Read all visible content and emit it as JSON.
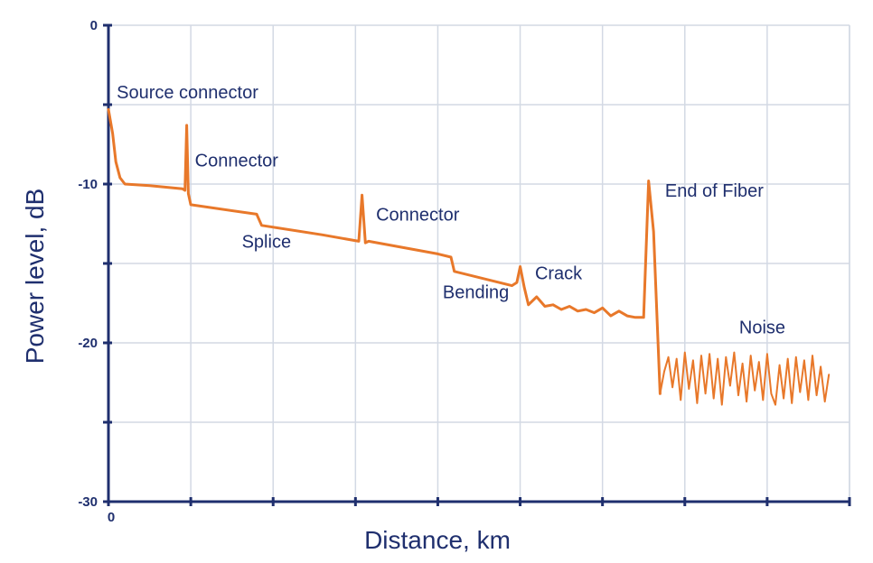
{
  "chart_data": {
    "type": "line",
    "xlabel": "Distance, km",
    "ylabel": "Power level, dB",
    "x_tick_labels": [
      "0"
    ],
    "y_ticks": [
      0,
      -10,
      -20,
      -30
    ],
    "y_tick_labels": [
      "0",
      "-10",
      "-20",
      "-30"
    ],
    "ylim": [
      -30,
      0
    ],
    "grid": true,
    "colors": {
      "trace": "#e8782a",
      "axis": "#1f2f6e",
      "grid": "#d3d9e4"
    },
    "series": [
      {
        "values": [
          [
            0.0,
            -5.3
          ],
          [
            0.05,
            -6.8
          ],
          [
            0.09,
            -8.6
          ],
          [
            0.14,
            -9.6
          ],
          [
            0.2,
            -10.0
          ],
          [
            0.5,
            -10.1
          ],
          [
            0.9,
            -10.3
          ],
          [
            0.93,
            -10.4
          ],
          [
            0.95,
            -6.3
          ],
          [
            0.97,
            -10.6
          ],
          [
            1.0,
            -11.3
          ],
          [
            1.8,
            -11.9
          ],
          [
            1.86,
            -12.6
          ],
          [
            2.6,
            -13.2
          ],
          [
            3.04,
            -13.6
          ],
          [
            3.08,
            -10.7
          ],
          [
            3.12,
            -13.7
          ],
          [
            3.16,
            -13.6
          ],
          [
            4.0,
            -14.4
          ],
          [
            4.16,
            -14.6
          ],
          [
            4.2,
            -15.5
          ],
          [
            4.9,
            -16.4
          ],
          [
            4.96,
            -16.2
          ],
          [
            5.0,
            -15.2
          ],
          [
            5.05,
            -16.5
          ],
          [
            5.1,
            -17.6
          ],
          [
            5.2,
            -17.1
          ],
          [
            5.3,
            -17.7
          ],
          [
            5.4,
            -17.6
          ],
          [
            5.5,
            -17.9
          ],
          [
            5.6,
            -17.7
          ],
          [
            5.7,
            -18.0
          ],
          [
            5.8,
            -17.9
          ],
          [
            5.9,
            -18.1
          ],
          [
            6.0,
            -17.8
          ],
          [
            6.1,
            -18.3
          ],
          [
            6.2,
            -18.0
          ],
          [
            6.3,
            -18.3
          ],
          [
            6.4,
            -18.4
          ],
          [
            6.5,
            -18.4
          ],
          [
            6.56,
            -9.8
          ],
          [
            6.62,
            -13.0
          ],
          [
            6.7,
            -23.2
          ]
        ]
      },
      {
        "name": "Noise",
        "values": [
          [
            6.7,
            -23.2
          ],
          [
            6.75,
            -21.8
          ],
          [
            6.8,
            -20.9
          ],
          [
            6.85,
            -22.8
          ],
          [
            6.9,
            -21.0
          ],
          [
            6.95,
            -23.6
          ],
          [
            7.0,
            -20.6
          ],
          [
            7.05,
            -22.9
          ],
          [
            7.1,
            -21.1
          ],
          [
            7.15,
            -23.8
          ],
          [
            7.2,
            -20.8
          ],
          [
            7.25,
            -23.2
          ],
          [
            7.3,
            -20.7
          ],
          [
            7.35,
            -23.5
          ],
          [
            7.4,
            -21.0
          ],
          [
            7.45,
            -23.9
          ],
          [
            7.5,
            -20.9
          ],
          [
            7.55,
            -22.7
          ],
          [
            7.6,
            -20.6
          ],
          [
            7.65,
            -23.3
          ],
          [
            7.7,
            -21.3
          ],
          [
            7.75,
            -23.7
          ],
          [
            7.8,
            -20.8
          ],
          [
            7.85,
            -23.0
          ],
          [
            7.9,
            -21.2
          ],
          [
            7.95,
            -23.6
          ],
          [
            8.0,
            -20.7
          ],
          [
            8.05,
            -23.2
          ],
          [
            8.1,
            -23.9
          ],
          [
            8.15,
            -21.4
          ],
          [
            8.2,
            -23.5
          ],
          [
            8.25,
            -21.0
          ],
          [
            8.3,
            -23.8
          ],
          [
            8.35,
            -20.9
          ],
          [
            8.4,
            -23.1
          ],
          [
            8.45,
            -21.1
          ],
          [
            8.5,
            -23.6
          ],
          [
            8.55,
            -20.8
          ],
          [
            8.6,
            -23.3
          ],
          [
            8.65,
            -21.5
          ],
          [
            8.7,
            -23.7
          ],
          [
            8.75,
            -22.0
          ]
        ]
      }
    ],
    "annotations": [
      {
        "text": "Source connector",
        "x": 0.1,
        "y": -4.6
      },
      {
        "text": "Connector",
        "x": 1.05,
        "y": -8.9
      },
      {
        "text": "Splice",
        "x": 1.62,
        "y": -14.0
      },
      {
        "text": "Connector",
        "x": 3.25,
        "y": -12.3
      },
      {
        "text": "Bending",
        "x": 4.06,
        "y": -17.2
      },
      {
        "text": "Crack",
        "x": 5.18,
        "y": -16.0
      },
      {
        "text": "End of Fiber",
        "x": 6.76,
        "y": -10.8
      },
      {
        "text": "Noise",
        "x": 7.66,
        "y": -19.4
      }
    ]
  }
}
